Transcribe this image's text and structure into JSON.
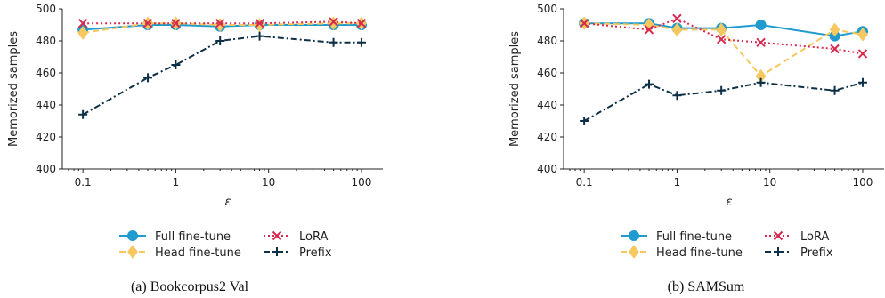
{
  "chart_data": [
    {
      "type": "line",
      "caption": "(a) Bookcorpus2 Val",
      "xlabel": "ε",
      "ylabel": "Memorized samples",
      "xscale": "log",
      "xlim": [
        0.06,
        170
      ],
      "ylim": [
        400,
        500
      ],
      "xticks": [
        0.1,
        1,
        10,
        100
      ],
      "xtick_labels": [
        "0.1",
        "1",
        "10",
        "100"
      ],
      "yticks": [
        400,
        420,
        440,
        460,
        480,
        500
      ],
      "grid": false,
      "legend_position": "bottom-center",
      "x": [
        0.1,
        0.5,
        1,
        3,
        8,
        50,
        100
      ],
      "series": [
        {
          "name": "Full fine-tune",
          "color": "#1f9bcf",
          "values": [
            487,
            490,
            490,
            489,
            490,
            490,
            490
          ]
        },
        {
          "name": "Head fine-tune",
          "color": "#f6c85f",
          "values": [
            485,
            491,
            491,
            490,
            490,
            491,
            491
          ]
        },
        {
          "name": "LoRA",
          "color": "#d62a4e",
          "values": [
            491,
            491,
            491,
            491,
            491,
            492,
            491
          ]
        },
        {
          "name": "Prefix",
          "color": "#0d3046",
          "values": [
            434,
            457,
            465,
            480,
            483,
            479,
            479
          ]
        }
      ]
    },
    {
      "type": "line",
      "caption": "(b) SAMSum",
      "xlabel": "ε",
      "ylabel": "Memorized samples",
      "xscale": "log",
      "xlim": [
        0.06,
        170
      ],
      "ylim": [
        400,
        500
      ],
      "xticks": [
        0.1,
        1,
        10,
        100
      ],
      "xtick_labels": [
        "0.1",
        "1",
        "10",
        "100"
      ],
      "yticks": [
        400,
        420,
        440,
        460,
        480,
        500
      ],
      "grid": false,
      "legend_position": "bottom-center",
      "x": [
        0.1,
        0.5,
        1,
        3,
        8,
        50,
        100
      ],
      "series": [
        {
          "name": "Full fine-tune",
          "color": "#1f9bcf",
          "values": [
            491,
            491,
            488,
            488,
            490,
            483,
            486
          ]
        },
        {
          "name": "Head fine-tune",
          "color": "#f6c85f",
          "values": [
            491,
            490,
            487,
            487,
            458,
            487,
            484
          ]
        },
        {
          "name": "LoRA",
          "color": "#d62a4e",
          "values": [
            491,
            487,
            494,
            481,
            479,
            475,
            472
          ]
        },
        {
          "name": "Prefix",
          "color": "#0d3046",
          "values": [
            430,
            453,
            446,
            449,
            454,
            449,
            454
          ]
        }
      ]
    }
  ]
}
